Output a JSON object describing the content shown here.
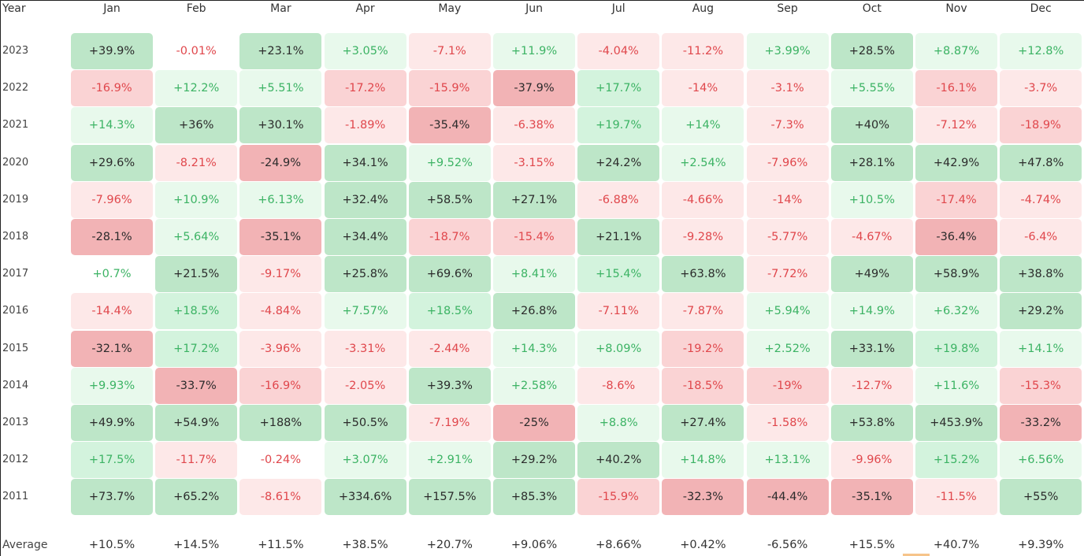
{
  "chart_data": {
    "type": "heatmap",
    "row_header": "Year",
    "columns": [
      "Jan",
      "Feb",
      "Mar",
      "Apr",
      "May",
      "Jun",
      "Jul",
      "Aug",
      "Sep",
      "Oct",
      "Nov",
      "Dec"
    ],
    "rows": [
      {
        "year": "2023",
        "values": [
          "+39.9%",
          "-0.01%",
          "+23.1%",
          "+3.05%",
          "-7.1%",
          "+11.9%",
          "-4.04%",
          "-11.2%",
          "+3.99%",
          "+28.5%",
          "+8.87%",
          "+12.8%"
        ]
      },
      {
        "year": "2022",
        "values": [
          "-16.9%",
          "+12.2%",
          "+5.51%",
          "-17.2%",
          "-15.9%",
          "-37.9%",
          "+17.7%",
          "-14%",
          "-3.1%",
          "+5.55%",
          "-16.1%",
          "-3.7%"
        ]
      },
      {
        "year": "2021",
        "values": [
          "+14.3%",
          "+36%",
          "+30.1%",
          "-1.89%",
          "-35.4%",
          "-6.38%",
          "+19.7%",
          "+14%",
          "-7.3%",
          "+40%",
          "-7.12%",
          "-18.9%"
        ]
      },
      {
        "year": "2020",
        "values": [
          "+29.6%",
          "-8.21%",
          "-24.9%",
          "+34.1%",
          "+9.52%",
          "-3.15%",
          "+24.2%",
          "+2.54%",
          "-7.96%",
          "+28.1%",
          "+42.9%",
          "+47.8%"
        ]
      },
      {
        "year": "2019",
        "values": [
          "-7.96%",
          "+10.9%",
          "+6.13%",
          "+32.4%",
          "+58.5%",
          "+27.1%",
          "-6.88%",
          "-4.66%",
          "-14%",
          "+10.5%",
          "-17.4%",
          "-4.74%"
        ]
      },
      {
        "year": "2018",
        "values": [
          "-28.1%",
          "+5.64%",
          "-35.1%",
          "+34.4%",
          "-18.7%",
          "-15.4%",
          "+21.1%",
          "-9.28%",
          "-5.77%",
          "-4.67%",
          "-36.4%",
          "-6.4%"
        ]
      },
      {
        "year": "2017",
        "values": [
          "+0.7%",
          "+21.5%",
          "-9.17%",
          "+25.8%",
          "+69.6%",
          "+8.41%",
          "+15.4%",
          "+63.8%",
          "-7.72%",
          "+49%",
          "+58.9%",
          "+38.8%"
        ]
      },
      {
        "year": "2016",
        "values": [
          "-14.4%",
          "+18.5%",
          "-4.84%",
          "+7.57%",
          "+18.5%",
          "+26.8%",
          "-7.11%",
          "-7.87%",
          "+5.94%",
          "+14.9%",
          "+6.32%",
          "+29.2%"
        ]
      },
      {
        "year": "2015",
        "values": [
          "-32.1%",
          "+17.2%",
          "-3.96%",
          "-3.31%",
          "-2.44%",
          "+14.3%",
          "+8.09%",
          "-19.2%",
          "+2.52%",
          "+33.1%",
          "+19.8%",
          "+14.1%"
        ]
      },
      {
        "year": "2014",
        "values": [
          "+9.93%",
          "-33.7%",
          "-16.9%",
          "-2.05%",
          "+39.3%",
          "+2.58%",
          "-8.6%",
          "-18.5%",
          "-19%",
          "-12.7%",
          "+11.6%",
          "-15.3%"
        ]
      },
      {
        "year": "2013",
        "values": [
          "+49.9%",
          "+54.9%",
          "+188%",
          "+50.5%",
          "-7.19%",
          "-25%",
          "+8.8%",
          "+27.4%",
          "-1.58%",
          "+53.8%",
          "+453.9%",
          "-33.2%"
        ]
      },
      {
        "year": "2012",
        "values": [
          "+17.5%",
          "-11.7%",
          "-0.24%",
          "+3.07%",
          "+2.91%",
          "+29.2%",
          "+40.2%",
          "+14.8%",
          "+13.1%",
          "-9.96%",
          "+15.2%",
          "+6.56%"
        ]
      },
      {
        "year": "2011",
        "values": [
          "+73.7%",
          "+65.2%",
          "-8.61%",
          "+334.6%",
          "+157.5%",
          "+85.3%",
          "-15.9%",
          "-32.3%",
          "-44.4%",
          "-35.1%",
          "-11.5%",
          "+55%"
        ]
      }
    ],
    "average_label": "Average",
    "averages": [
      "+10.5%",
      "+14.5%",
      "+11.5%",
      "+38.5%",
      "+20.7%",
      "+9.06%",
      "+8.66%",
      "+0.42%",
      "-6.56%",
      "+15.5%",
      "+40.7%",
      "+9.39%"
    ],
    "colors": {
      "pos_text_light": "#3cb364",
      "pos_text_dark": "#2b2b2b",
      "neg_text_light": "#e0474c",
      "neg_text_dark": "#2b2b2b",
      "pos_bg": [
        "#ffffff",
        "#e8f9ec",
        "#d3f3dd",
        "#bde6c8"
      ],
      "neg_bg": [
        "#ffffff",
        "#fde8e8",
        "#fad3d4",
        "#f2b3b5"
      ]
    }
  }
}
